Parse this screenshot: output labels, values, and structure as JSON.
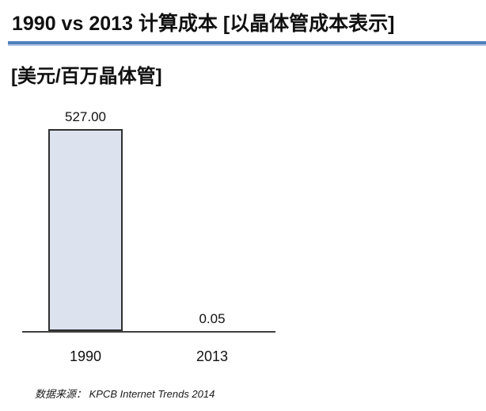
{
  "header": {
    "title": "1990 vs 2013 计算成本 [以晶体管成本表示]"
  },
  "chart": {
    "unit_label": "[美元/百万晶体管]"
  },
  "chart_data": {
    "type": "bar",
    "categories": [
      "1990",
      "2013"
    ],
    "values": [
      527.0,
      0.05
    ],
    "value_labels": [
      "527.00",
      "0.05"
    ],
    "title": "1990 vs 2013 计算成本 [以晶体管成本表示]",
    "xlabel": "",
    "ylabel": "[美元/百万晶体管]",
    "ylim": [
      0,
      560
    ],
    "grid": false,
    "legend": false,
    "bar_fill_color": "#dde3ee",
    "bar_border_color": "#2f2f2f",
    "axis_color": "#404040"
  },
  "footer": {
    "source": "数据来源：  KPCB Internet Trends 2014"
  },
  "colors": {
    "divider_blue": "#4f81bd",
    "divider_blue_light": "#b4c9e2"
  }
}
